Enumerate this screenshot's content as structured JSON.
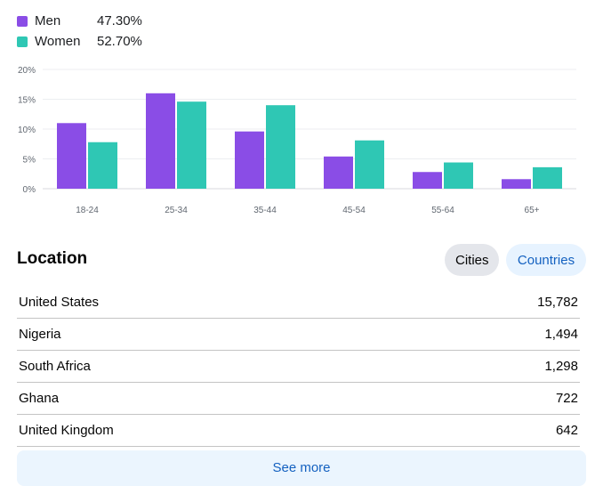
{
  "legend": [
    {
      "name": "Men",
      "value": "47.30%",
      "color": "#8a4de6"
    },
    {
      "name": "Women",
      "value": "52.70%",
      "color": "#2fc7b4"
    }
  ],
  "chart_data": {
    "type": "bar",
    "categories": [
      "18-24",
      "25-34",
      "35-44",
      "45-54",
      "55-64",
      "65+"
    ],
    "series": [
      {
        "name": "Men",
        "values": [
          11,
          16,
          9.6,
          5.4,
          2.8,
          1.6
        ],
        "color": "#8a4de6"
      },
      {
        "name": "Women",
        "values": [
          7.8,
          14.6,
          14,
          8.1,
          4.4,
          3.6
        ],
        "color": "#2fc7b4"
      }
    ],
    "yticks": [
      "0%",
      "5%",
      "10%",
      "15%",
      "20%"
    ],
    "ylim": [
      0,
      20
    ],
    "grid": true,
    "legend_position": "top-left"
  },
  "location": {
    "title": "Location",
    "tabs": {
      "cities": "Cities",
      "countries": "Countries"
    },
    "rows": [
      {
        "name": "United States",
        "count": "15,782"
      },
      {
        "name": "Nigeria",
        "count": "1,494"
      },
      {
        "name": "South Africa",
        "count": "1,298"
      },
      {
        "name": "Ghana",
        "count": "722"
      },
      {
        "name": "United Kingdom",
        "count": "642"
      }
    ],
    "see_more": "See more"
  }
}
